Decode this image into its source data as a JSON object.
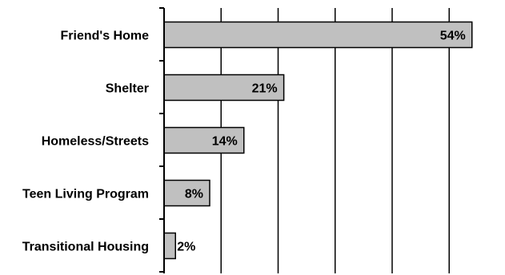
{
  "chart_data": {
    "type": "bar",
    "orientation": "horizontal",
    "categories": [
      "Friend's Home",
      "Shelter",
      "Homeless/Streets",
      "Teen Living Program",
      "Transitional Housing"
    ],
    "values": [
      54,
      21,
      14,
      8,
      2
    ],
    "value_labels": [
      "54%",
      "21%",
      "14%",
      "8%",
      "2%"
    ],
    "title": "",
    "xlabel": "",
    "ylabel": "",
    "xlim": [
      0,
      60
    ],
    "gridlines": "vertical",
    "grid_step": 10,
    "bar_color": "#c0c0c0",
    "bar_edge_color": "#000000",
    "legend": "none"
  }
}
